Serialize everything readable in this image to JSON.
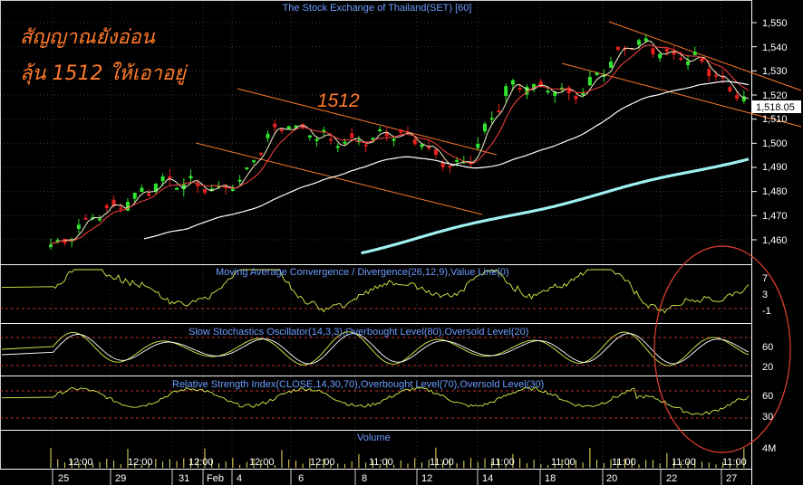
{
  "chart_title": "The Stock Exchange of Thailand(SET) [60]",
  "annotations": {
    "line1": "สัญญาณยังอ่อน",
    "line2": "ลุ้น 1512 ให้เอาอยู่",
    "level_label": "1512"
  },
  "price_axis": {
    "ticks": [
      "1,550",
      "1,540",
      "1,530",
      "1,520",
      "1,510",
      "1,500",
      "1,490",
      "1,480",
      "1,470",
      "1,460"
    ],
    "tick_values": [
      1550,
      1540,
      1530,
      1520,
      1510,
      1500,
      1490,
      1480,
      1470,
      1460
    ],
    "last_price_label": "1,518.05",
    "last_price": 1518.05
  },
  "panels": {
    "macd": {
      "title": "Moving Average Convergence / Divergence(26,12,9),Value Line(0)",
      "ticks": [
        "7",
        "3",
        "-1"
      ]
    },
    "stoch": {
      "title": "Slow Stochastics Oscillator(14,3,3),Overbought Level(80),Oversold Level(20)",
      "ticks": [
        "60",
        "20"
      ]
    },
    "rsi": {
      "title": "Relative Strength Index(CLOSE,14,30,70),Overbought Level(70),Oversold Level(30)",
      "ticks": [
        "60",
        "30"
      ]
    },
    "volume": {
      "title": "Volume",
      "ticks": [
        "4M"
      ]
    }
  },
  "time_axis": {
    "upper_labels": [
      "12:00",
      "12:00",
      "12:00",
      "12:00",
      "12:00",
      "11:00",
      "11:00",
      "11:00",
      "11:00",
      "11:00",
      "11:00",
      "11:00",
      "11:00"
    ],
    "lower_labels": [
      "25",
      "29",
      "31",
      "Feb",
      "4",
      "6",
      "8",
      "12",
      "14",
      "18",
      "20",
      "22",
      "27"
    ]
  },
  "colors": {
    "background": "#000000",
    "candle_up": "#2ee62e",
    "candle_down": "#e62020",
    "ma_short": "#ffffff",
    "ma_mid": "#ff4040",
    "ma_long": "#9ff0f0",
    "trend_channel": "#ff7a2a",
    "panel_title": "#6d9cff",
    "indicator": "#d6f24a",
    "overbought_level": "#ff4040"
  },
  "chart_data": {
    "type": "candlestick",
    "title": "The Stock Exchange of Thailand(SET) [60]",
    "timeframe": "60 minute",
    "price_range": [
      1455,
      1555
    ],
    "close_points": [
      {
        "label": "25",
        "close": 1458
      },
      {
        "label": "29",
        "close": 1473
      },
      {
        "label": "31",
        "close": 1484
      },
      {
        "label": "Feb",
        "close": 1481
      },
      {
        "label": "4",
        "close": 1507
      },
      {
        "label": "6",
        "close": 1501
      },
      {
        "label": "8",
        "close": 1504
      },
      {
        "label": "12",
        "close": 1490
      },
      {
        "label": "14",
        "close": 1524
      },
      {
        "label": "18",
        "close": 1521
      },
      {
        "label": "20",
        "close": 1541
      },
      {
        "label": "22",
        "close": 1535
      },
      {
        "label": "27",
        "close": 1518.05
      }
    ],
    "overlays": [
      "short moving average",
      "medium moving average",
      "long moving average",
      "very long moving average"
    ],
    "indicators": [
      "MACD(26,12,9)",
      "Slow Stochastics(14,3,3)",
      "RSI(14)",
      "Volume"
    ]
  }
}
